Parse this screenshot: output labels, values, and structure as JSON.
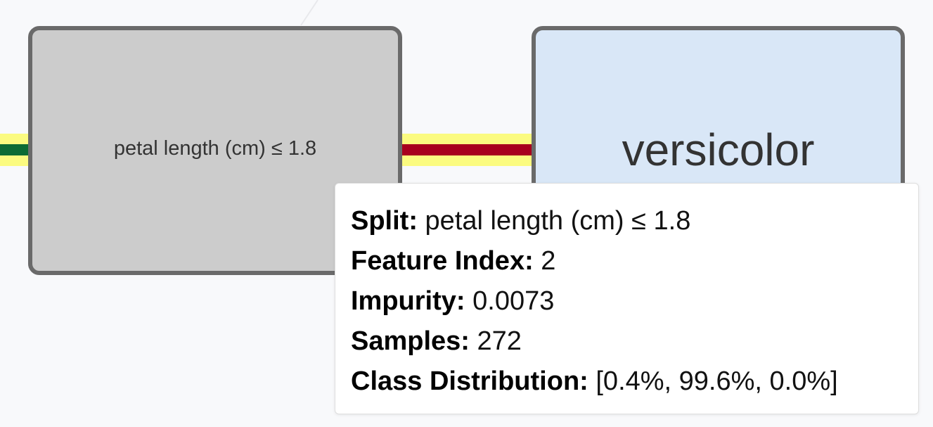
{
  "colors": {
    "background": "#f8f9fb",
    "split_node_fill": "#cccccc",
    "leaf_node_fill": "#d9e7f7",
    "node_border": "#6a6a6a",
    "edge_highlight": "#fbfb80",
    "edge_left": "#0b6b34",
    "edge_right": "#a8001e"
  },
  "split_node": {
    "label": "petal length (cm) ≤ 1.8"
  },
  "leaf_node": {
    "label": "versicolor"
  },
  "tooltip": {
    "split_key": "Split:",
    "split_value": "petal length (cm) ≤ 1.8",
    "feature_index_key": "Feature Index:",
    "feature_index_value": "2",
    "impurity_key": "Impurity:",
    "impurity_value": "0.0073",
    "samples_key": "Samples:",
    "samples_value": "272",
    "class_distribution_key": "Class Distribution:",
    "class_distribution_value": "[0.4%, 99.6%, 0.0%]"
  }
}
